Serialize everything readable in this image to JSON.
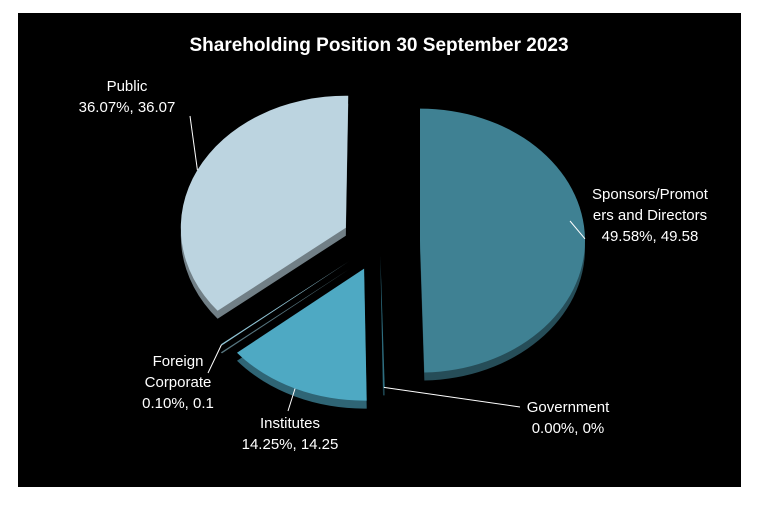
{
  "chart_data": {
    "type": "pie",
    "title": "Shareholding Position 30 September 2023",
    "slices": [
      {
        "label_lines": [
          "Sponsors/Promot",
          "ers and Directors"
        ],
        "value_text": "49.58%, 49.58",
        "percent": 49.58,
        "value": 49.58,
        "color": "#3f8193"
      },
      {
        "label_lines": [
          "Government"
        ],
        "value_text": "0.00%, 0%",
        "percent": 0.0,
        "value": 0,
        "color": "#2e6e80"
      },
      {
        "label_lines": [
          "Institutes"
        ],
        "value_text": "14.25%, 14.25",
        "percent": 14.25,
        "value": 14.25,
        "color": "#4ea9c3"
      },
      {
        "label_lines": [
          "Foreign",
          "Corporate"
        ],
        "value_text": "0.10%, 0.1",
        "percent": 0.1,
        "value": 0.1,
        "color": "#8fc3d4"
      },
      {
        "label_lines": [
          "Public"
        ],
        "value_text": "36.07%, 36.07",
        "percent": 36.07,
        "value": 36.07,
        "color": "#bcd4e0"
      }
    ],
    "legend": "none",
    "exploded": true
  }
}
